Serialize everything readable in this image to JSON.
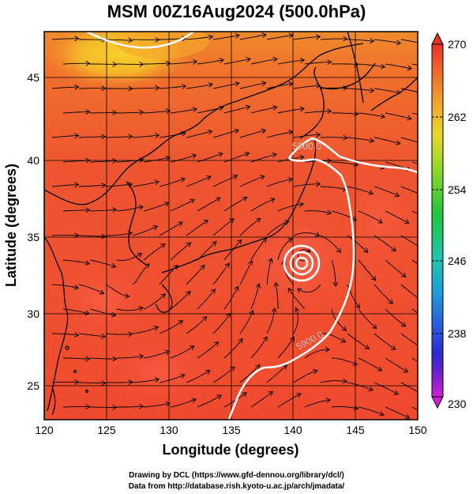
{
  "title": "MSM 00Z16Aug2024 (500.0hPa)",
  "xlabel": "Longitude (degrees)",
  "ylabel": "Latitude  (degrees)",
  "x_ticks": [
    "120",
    "125",
    "130",
    "135",
    "140",
    "145",
    "150"
  ],
  "y_ticks": [
    "25",
    "30",
    "35",
    "40",
    "45"
  ],
  "colorbar": {
    "ticks": [
      "270",
      "262",
      "254",
      "246",
      "238",
      "230"
    ],
    "colors_top_to_bottom": [
      "#e8322a",
      "#f06a2a",
      "#f2a52d",
      "#e6d92a",
      "#8ad82a",
      "#22c43a",
      "#1fc6a6",
      "#1e9fd8",
      "#2a5be0",
      "#2a2ad0",
      "#8a1fd0",
      "#d01ed6"
    ]
  },
  "contours": {
    "label_north": "5900.0",
    "label_south": "5900.0",
    "typhoon_center": {
      "lon": 140.8,
      "lat": 33.4
    }
  },
  "colors": {
    "field_main": "#f14a2e",
    "field_warm": "#ee5b2f",
    "field_north": "#f08a2c",
    "field_core": "#f7d12a"
  },
  "footer": {
    "line1": "Drawing by DCL (https://www.gfd-dennou.org/library/dcl/)",
    "line2": "Data from http://database.rish.kyoto-u.ac.jp/arch/jmadata/"
  }
}
